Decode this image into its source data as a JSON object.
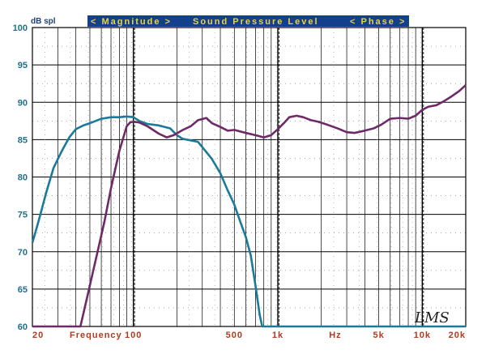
{
  "header": {
    "unit_label": "dB spl",
    "banner": {
      "left": "< Magnitude >",
      "center": "Sound Pressure Level",
      "right": "< Phase >"
    },
    "banner_color": "#12408a",
    "banner_text_color": "#e8d34a"
  },
  "watermark": "LMS",
  "colors": {
    "series_teal": "#1a7a9a",
    "series_purple": "#6e2a68",
    "y_tick_color": "#1f6f8b",
    "x_tick_color": "#b23a1e"
  },
  "chart_data": {
    "type": "line",
    "x_scale": "log",
    "xlim": [
      20,
      20000
    ],
    "ylim": [
      60,
      100
    ],
    "grid": true,
    "y_ticks": [
      "100",
      "95",
      "90",
      "85",
      "80",
      "75",
      "70",
      "65",
      "60"
    ],
    "x_tick_labels": [
      {
        "x": 20,
        "label": "20"
      },
      {
        "x": 55,
        "label": "Frequency"
      },
      {
        "x": 100,
        "label": "100"
      },
      {
        "x": 500,
        "label": "500"
      },
      {
        "x": 1000,
        "label": "1k"
      },
      {
        "x": 2500,
        "label": "Hz"
      },
      {
        "x": 5000,
        "label": "5k"
      },
      {
        "x": 10000,
        "label": "10k"
      },
      {
        "x": 20000,
        "label": "20k"
      }
    ],
    "series": [
      {
        "color": "#1a7a9a",
        "points": [
          [
            20,
            71.2
          ],
          [
            22,
            74
          ],
          [
            25,
            78
          ],
          [
            28,
            81.2
          ],
          [
            32,
            83.5
          ],
          [
            36,
            85.3
          ],
          [
            40,
            86.4
          ],
          [
            45,
            86.9
          ],
          [
            50,
            87.2
          ],
          [
            60,
            87.8
          ],
          [
            70,
            88.0
          ],
          [
            80,
            88.0
          ],
          [
            90,
            88.1
          ],
          [
            100,
            88.0
          ],
          [
            110,
            87.5
          ],
          [
            125,
            87.1
          ],
          [
            150,
            86.9
          ],
          [
            180,
            86.5
          ],
          [
            200,
            85.6
          ],
          [
            220,
            85.1
          ],
          [
            250,
            84.9
          ],
          [
            280,
            84.7
          ],
          [
            300,
            84.0
          ],
          [
            350,
            82.4
          ],
          [
            400,
            80.5
          ],
          [
            450,
            78.2
          ],
          [
            500,
            76.3
          ],
          [
            550,
            74.0
          ],
          [
            600,
            72.0
          ],
          [
            650,
            69.5
          ],
          [
            700,
            65.5
          ],
          [
            750,
            61.5
          ],
          [
            780,
            60.0
          ],
          [
            20000,
            60.0
          ]
        ]
      },
      {
        "color": "#6e2a68",
        "points": [
          [
            20,
            60.0
          ],
          [
            43,
            60.0
          ],
          [
            48,
            64
          ],
          [
            55,
            69
          ],
          [
            63,
            74
          ],
          [
            70,
            78.5
          ],
          [
            80,
            83.5
          ],
          [
            90,
            86.8
          ],
          [
            95,
            87.3
          ],
          [
            100,
            87.4
          ],
          [
            110,
            87.3
          ],
          [
            125,
            86.8
          ],
          [
            150,
            85.8
          ],
          [
            170,
            85.3
          ],
          [
            190,
            85.6
          ],
          [
            220,
            86.3
          ],
          [
            250,
            86.8
          ],
          [
            280,
            87.6
          ],
          [
            320,
            87.9
          ],
          [
            350,
            87.2
          ],
          [
            400,
            86.7
          ],
          [
            450,
            86.2
          ],
          [
            500,
            86.3
          ],
          [
            600,
            85.9
          ],
          [
            700,
            85.6
          ],
          [
            800,
            85.3
          ],
          [
            900,
            85.6
          ],
          [
            1000,
            86.4
          ],
          [
            1100,
            87.2
          ],
          [
            1200,
            88.0
          ],
          [
            1350,
            88.2
          ],
          [
            1500,
            88.0
          ],
          [
            1700,
            87.6
          ],
          [
            1900,
            87.4
          ],
          [
            2200,
            87.0
          ],
          [
            2600,
            86.5
          ],
          [
            3000,
            86.0
          ],
          [
            3400,
            85.9
          ],
          [
            4000,
            86.2
          ],
          [
            4600,
            86.5
          ],
          [
            5200,
            87.0
          ],
          [
            6000,
            87.8
          ],
          [
            7000,
            87.9
          ],
          [
            8000,
            87.8
          ],
          [
            9000,
            88.2
          ],
          [
            10000,
            89.0
          ],
          [
            11000,
            89.4
          ],
          [
            12500,
            89.6
          ],
          [
            14000,
            90.1
          ],
          [
            16000,
            90.8
          ],
          [
            18000,
            91.5
          ],
          [
            20000,
            92.3
          ]
        ]
      }
    ]
  }
}
